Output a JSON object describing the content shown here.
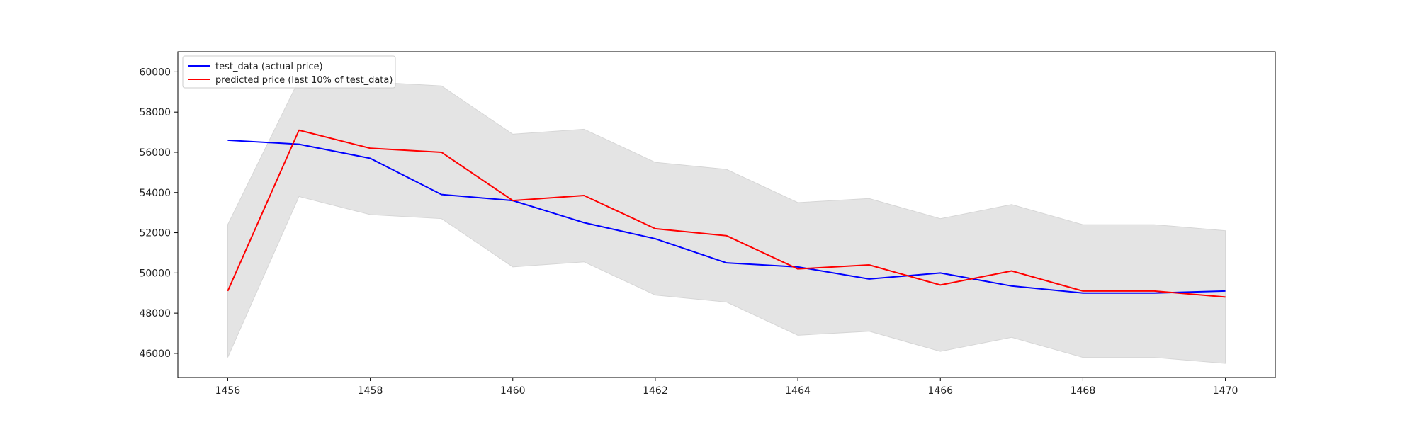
{
  "chart_data": {
    "type": "line",
    "title": "",
    "xlabel": "",
    "ylabel": "",
    "xlim": [
      1455.3,
      1470.7
    ],
    "ylim": [
      44800,
      61000
    ],
    "xticks": [
      1456,
      1458,
      1460,
      1462,
      1464,
      1466,
      1468,
      1470
    ],
    "yticks": [
      46000,
      48000,
      50000,
      52000,
      54000,
      56000,
      58000,
      60000
    ],
    "grid": false,
    "legend_position": "top-left",
    "x": [
      1456,
      1457,
      1458,
      1459,
      1460,
      1461,
      1462,
      1463,
      1464,
      1465,
      1466,
      1467,
      1468,
      1469,
      1470
    ],
    "series": [
      {
        "name": "test_data (actual price)",
        "color": "#0000ff",
        "values": [
          56600,
          56400,
          55700,
          53900,
          53600,
          52500,
          51700,
          50500,
          50300,
          49700,
          50000,
          49350,
          49000,
          49000,
          49100
        ]
      },
      {
        "name": "predicted price (last 10% of test_data)",
        "color": "#ff0000",
        "values": [
          49100,
          57100,
          56200,
          56000,
          53600,
          53850,
          52200,
          51850,
          50200,
          50400,
          49400,
          50100,
          49100,
          49100,
          48800
        ]
      }
    ],
    "band": {
      "color": "#e4e4e4",
      "upper": [
        52400,
        59600,
        59500,
        59300,
        56900,
        57150,
        55500,
        55150,
        53500,
        53700,
        52700,
        53400,
        52400,
        52400,
        52100
      ],
      "lower": [
        45800,
        53800,
        52900,
        52700,
        50300,
        50550,
        48900,
        48550,
        46900,
        47100,
        46100,
        46800,
        45800,
        45800,
        45500
      ]
    }
  }
}
